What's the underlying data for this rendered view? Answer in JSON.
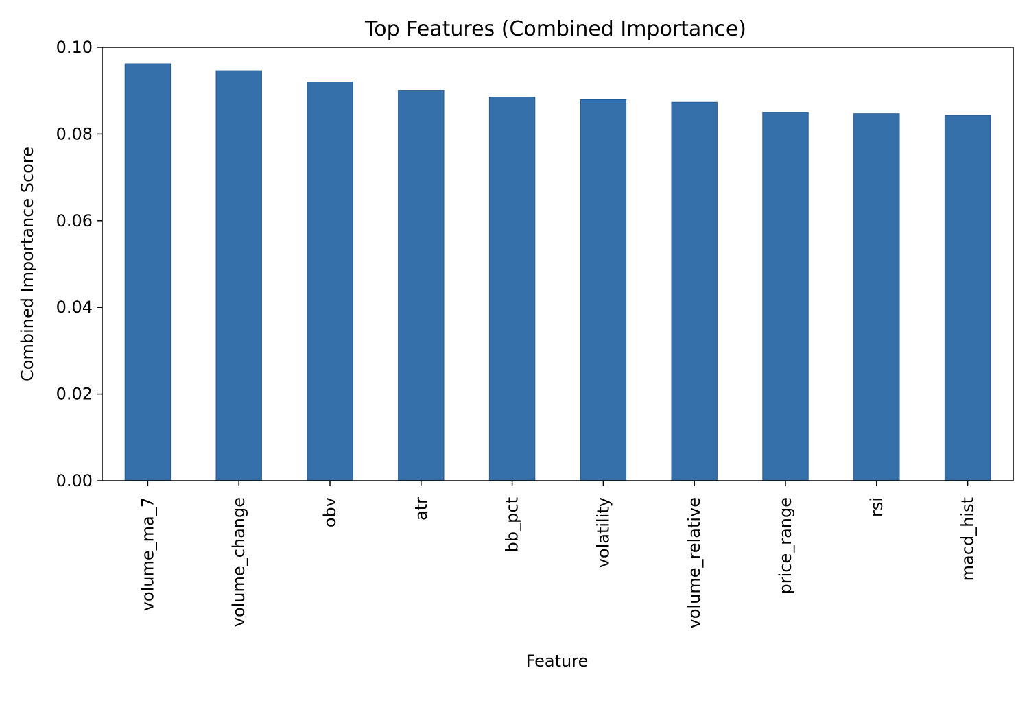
{
  "chart_data": {
    "type": "bar",
    "title": "Top Features (Combined Importance)",
    "xlabel": "Feature",
    "ylabel": "Combined Importance Score",
    "categories": [
      "volume_ma_7",
      "volume_change",
      "obv",
      "atr",
      "bb_pct",
      "volatility",
      "volume_relative",
      "price_range",
      "rsi",
      "macd_hist"
    ],
    "values": [
      0.0962,
      0.0946,
      0.092,
      0.0901,
      0.0885,
      0.0879,
      0.0873,
      0.085,
      0.0847,
      0.0843
    ],
    "ylim": [
      0,
      0.1
    ],
    "yticks": [
      0.0,
      0.02,
      0.04,
      0.06,
      0.08,
      0.1
    ],
    "ytick_labels": [
      "0.00",
      "0.02",
      "0.04",
      "0.06",
      "0.08",
      "0.10"
    ],
    "grid": false,
    "bar_color": "#3670AA",
    "bar_edge_color": "#2A5A8C"
  }
}
